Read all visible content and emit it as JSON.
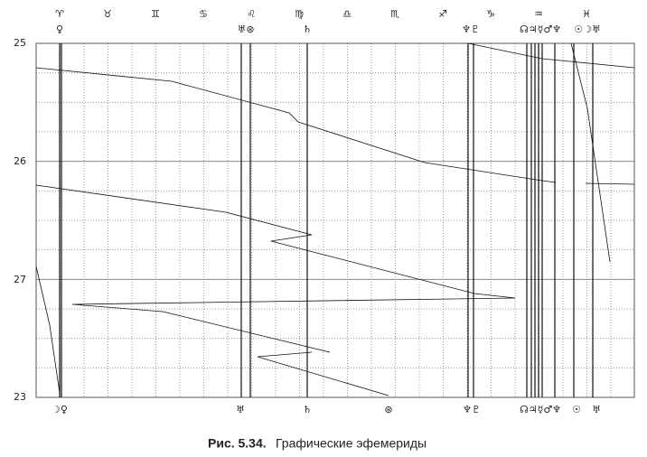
{
  "zodiac": [
    "♈",
    "♉",
    "♊",
    "♋",
    "♌",
    "♍",
    "♎",
    "♏",
    "♐",
    "♑",
    "♒",
    "♓"
  ],
  "y_labels": [
    "25",
    "26",
    "27",
    "23"
  ],
  "top_planets": [
    "♀",
    "♅⊛",
    "♄",
    "♆♇",
    "☊♃☿♂♆",
    "☉☽♅"
  ],
  "bottom_planets": [
    "☽♀",
    "♅",
    "♄",
    "⊛",
    "♆♇",
    "☊♃☿♂♆",
    "☉",
    "♅"
  ],
  "caption": {
    "number": "Рис. 5.34.",
    "text": "Графические эфемериды"
  }
}
